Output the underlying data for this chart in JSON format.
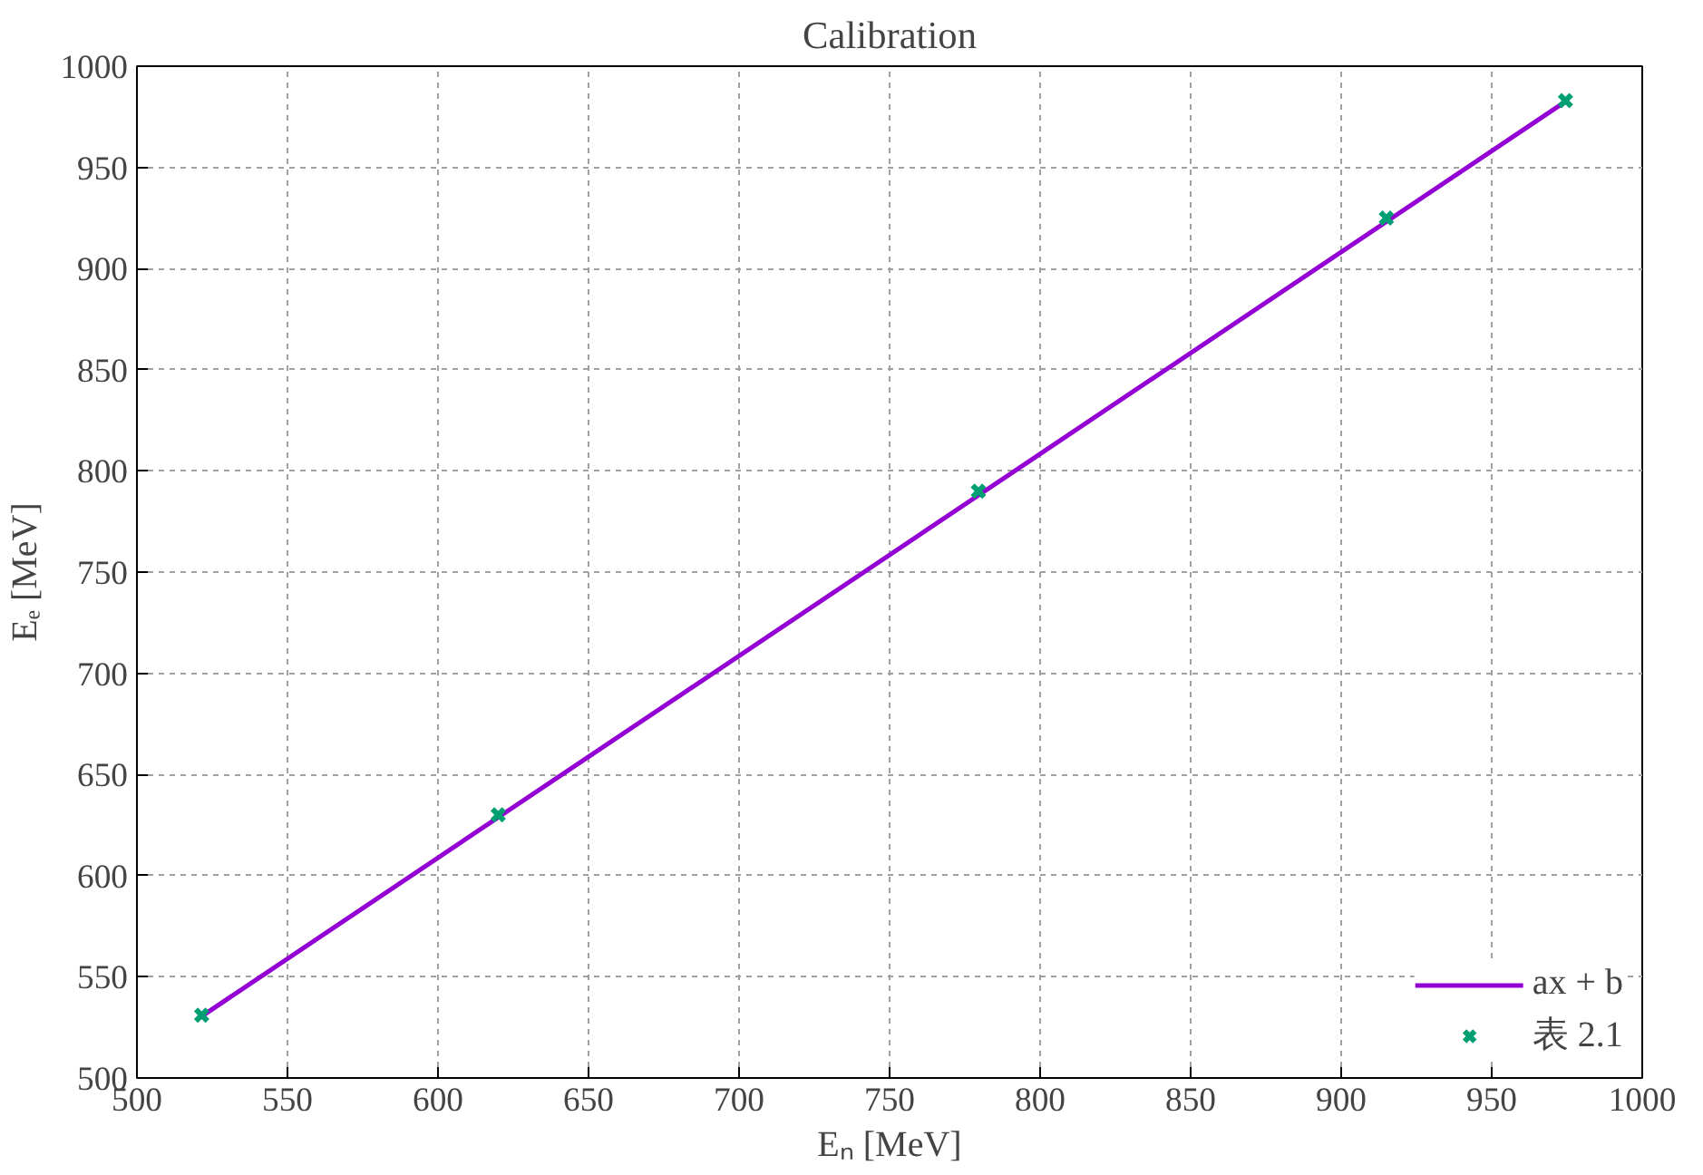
{
  "chart_data": {
    "type": "line",
    "title": "Calibration",
    "xlabel": "Eₙ [MeV]",
    "ylabel": "Eₑ [MeV]",
    "xlim": [
      500,
      1000
    ],
    "ylim": [
      500,
      1000
    ],
    "xticks": [
      500,
      550,
      600,
      650,
      700,
      750,
      800,
      850,
      900,
      950,
      1000
    ],
    "yticks": [
      500,
      550,
      600,
      650,
      700,
      750,
      800,
      850,
      900,
      950,
      1000
    ],
    "grid": true,
    "legend": "bottom right",
    "series": [
      {
        "name": "ax + b",
        "color": "#9400d3",
        "marker": "none",
        "line_style": "solid",
        "x": [
          522,
          975
        ],
        "values": [
          531,
          983
        ]
      },
      {
        "name": "表 2.1",
        "type": "scatter",
        "color": "#009e73",
        "marker": "cross",
        "x": [
          521.5,
          620,
          779.5,
          915,
          974.5
        ],
        "values": [
          531,
          630,
          790,
          925,
          983
        ]
      }
    ]
  }
}
